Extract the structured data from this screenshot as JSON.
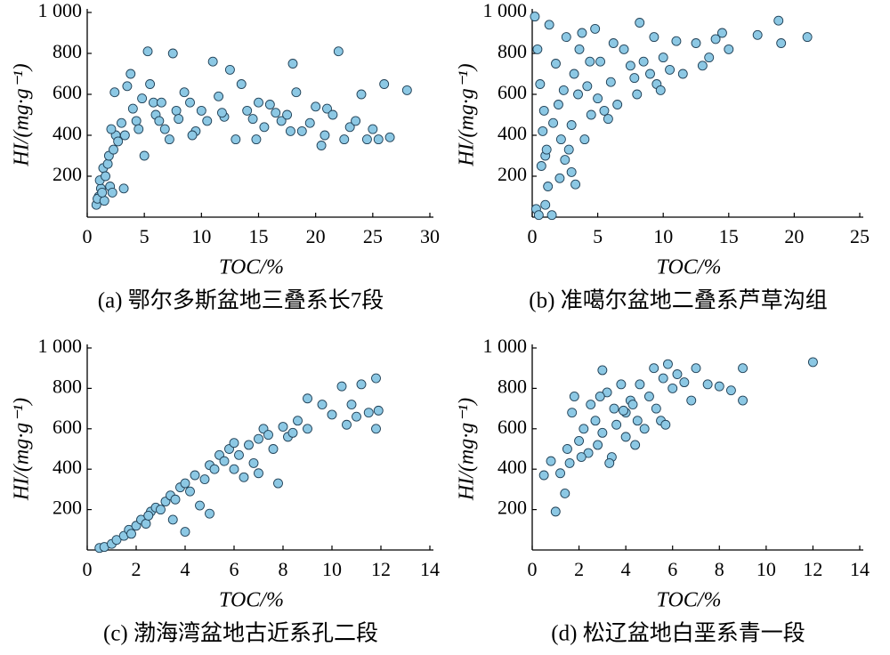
{
  "chart_data": [
    {
      "type": "scatter",
      "title": "(a) 鄂尔多斯盆地三叠系长7段",
      "xlabel": "TOC/%",
      "ylabel": "HI/(mg·g⁻¹)",
      "color": "#8cc8e4",
      "xlim": [
        0,
        30
      ],
      "xticks": [
        0,
        5,
        10,
        15,
        20,
        25,
        30
      ],
      "ylim": [
        0,
        1000
      ],
      "yticks": [
        200,
        400,
        600,
        800,
        {
          "value": 1000,
          "label": "1 000"
        }
      ],
      "x": [
        0.8,
        1,
        1.2,
        0.9,
        1.5,
        1.3,
        1.1,
        1.4,
        1.6,
        1.8,
        2,
        2.2,
        1.9,
        2.3,
        2.5,
        2.1,
        2.7,
        3,
        3.2,
        3.5,
        3.8,
        2.4,
        4,
        4.3,
        4.5,
        5,
        5.3,
        5.5,
        5.8,
        6,
        6.3,
        6.8,
        7.2,
        7.5,
        7.8,
        8,
        8.5,
        9,
        9.5,
        10,
        10.5,
        11,
        11.5,
        12,
        12.5,
        13,
        13.5,
        14,
        14.5,
        15,
        15.5,
        16,
        16.5,
        17,
        17.5,
        18,
        18.3,
        18.8,
        19.5,
        20,
        20.5,
        21,
        21.5,
        22,
        22.5,
        23,
        23.5,
        24,
        24.5,
        25,
        25.5,
        26,
        26.5,
        28,
        3.3,
        4.8,
        6.5,
        9.2,
        11.8,
        14.8,
        17.8,
        20.8
      ],
      "values": [
        60,
        100,
        140,
        90,
        80,
        120,
        180,
        240,
        200,
        260,
        150,
        120,
        300,
        330,
        400,
        430,
        370,
        460,
        140,
        640,
        700,
        610,
        530,
        470,
        430,
        300,
        810,
        650,
        560,
        500,
        470,
        430,
        380,
        800,
        520,
        480,
        610,
        560,
        420,
        520,
        470,
        760,
        590,
        490,
        720,
        380,
        650,
        520,
        480,
        560,
        440,
        550,
        510,
        470,
        500,
        750,
        610,
        420,
        460,
        540,
        350,
        530,
        500,
        810,
        380,
        440,
        470,
        600,
        380,
        430,
        380,
        650,
        390,
        620,
        400,
        580,
        560,
        400,
        510,
        380,
        420,
        400
      ]
    },
    {
      "type": "scatter",
      "title": "(b) 准噶尔盆地二叠系芦草沟组",
      "xlabel": "TOC/%",
      "ylabel": "HI/(mg·g⁻¹)",
      "color": "#8cc8e4",
      "xlim": [
        0,
        25
      ],
      "xticks": [
        0,
        5,
        10,
        15,
        20,
        25
      ],
      "ylim": [
        0,
        1000
      ],
      "yticks": [
        200,
        400,
        600,
        800,
        {
          "value": 1000,
          "label": "1 000"
        }
      ],
      "x": [
        0.2,
        0.3,
        0.5,
        0.8,
        1,
        1,
        1.2,
        1.5,
        0.6,
        0.4,
        1.3,
        1.8,
        2,
        2.2,
        2.5,
        2.6,
        3,
        3,
        3.2,
        3.5,
        3.8,
        4,
        4.2,
        4.5,
        4.8,
        5,
        5.2,
        5.5,
        6,
        6.2,
        6.5,
        7,
        7.5,
        8,
        8.2,
        8.5,
        9,
        9.3,
        9.5,
        10,
        10.5,
        11,
        11.5,
        12.5,
        13,
        13.5,
        14,
        14.5,
        15,
        17.2,
        18.8,
        19,
        21,
        1.6,
        2.8,
        3.3,
        2.1,
        1.1,
        0.9,
        5.8,
        4.4,
        3.6,
        7.8,
        9.8,
        0.7,
        2.4
      ],
      "values": [
        980,
        40,
        10,
        420,
        300,
        60,
        150,
        10,
        650,
        820,
        940,
        750,
        550,
        380,
        280,
        880,
        220,
        450,
        700,
        600,
        900,
        380,
        640,
        500,
        920,
        580,
        760,
        520,
        660,
        850,
        550,
        820,
        740,
        600,
        950,
        760,
        700,
        880,
        650,
        780,
        720,
        860,
        700,
        850,
        740,
        780,
        870,
        900,
        820,
        890,
        960,
        850,
        880,
        460,
        330,
        160,
        190,
        330,
        520,
        480,
        760,
        820,
        680,
        620,
        250,
        620
      ]
    },
    {
      "type": "scatter",
      "title": "(c) 渤海湾盆地古近系孔二段",
      "xlabel": "TOC/%",
      "ylabel": "HI/(mg·g⁻¹)",
      "color": "#8cc8e4",
      "xlim": [
        0,
        14
      ],
      "xticks": [
        0,
        2,
        4,
        6,
        8,
        10,
        12,
        14
      ],
      "ylim": [
        0,
        1000
      ],
      "yticks": [
        200,
        400,
        600,
        800,
        {
          "value": 1000,
          "label": "1 000"
        }
      ],
      "x": [
        0.5,
        0.7,
        1,
        1.2,
        1.5,
        1.7,
        2,
        2.2,
        2.4,
        2.6,
        2.8,
        3,
        3.2,
        3.4,
        3.6,
        3.8,
        4,
        4,
        4.2,
        4.4,
        4.6,
        4.8,
        5,
        5.2,
        5.4,
        5.6,
        5.8,
        6,
        6.2,
        6.4,
        6.6,
        6.8,
        7,
        7.2,
        7.4,
        7.6,
        7.8,
        8,
        8.2,
        8.4,
        8.6,
        9,
        9,
        9.6,
        10,
        10.4,
        10.6,
        10.8,
        11,
        11.2,
        11.5,
        11.8,
        11.9,
        11.8,
        3.5,
        5,
        6,
        7,
        1.8,
        2.5
      ],
      "values": [
        10,
        15,
        30,
        50,
        70,
        100,
        120,
        150,
        130,
        190,
        210,
        200,
        240,
        270,
        250,
        310,
        330,
        90,
        290,
        370,
        220,
        350,
        420,
        400,
        470,
        440,
        500,
        530,
        470,
        360,
        520,
        430,
        550,
        600,
        570,
        500,
        330,
        610,
        560,
        580,
        640,
        750,
        600,
        720,
        670,
        810,
        620,
        720,
        660,
        820,
        680,
        850,
        690,
        600,
        150,
        180,
        400,
        380,
        80,
        170
      ]
    },
    {
      "type": "scatter",
      "title": "(d) 松辽盆地白垩系青一段",
      "xlabel": "TOC/%",
      "ylabel": "HI/(mg·g⁻¹)",
      "color": "#8cc8e4",
      "xlim": [
        0,
        14
      ],
      "xticks": [
        0,
        2,
        4,
        6,
        8,
        10,
        12,
        14
      ],
      "ylim": [
        0,
        1000
      ],
      "yticks": [
        200,
        400,
        600,
        800,
        {
          "value": 1000,
          "label": "1 000"
        }
      ],
      "x": [
        0.5,
        0.8,
        1,
        1.2,
        1.4,
        1.5,
        1.7,
        1.8,
        2,
        2.2,
        2.4,
        2.5,
        2.7,
        2.8,
        3,
        3,
        3.2,
        3.4,
        3.5,
        3.6,
        3.8,
        4,
        4,
        4.2,
        4.4,
        4.5,
        4.6,
        4.8,
        5,
        5.2,
        5.3,
        5.5,
        5.6,
        5.8,
        6,
        6.2,
        6.5,
        7,
        7.5,
        8,
        8.5,
        9,
        9,
        12,
        1.6,
        2.1,
        3.3,
        4.3,
        5.7,
        2.9,
        3.9,
        6.8
      ],
      "values": [
        370,
        440,
        190,
        380,
        280,
        500,
        680,
        760,
        540,
        600,
        480,
        720,
        640,
        520,
        890,
        580,
        780,
        460,
        700,
        620,
        820,
        560,
        680,
        740,
        520,
        640,
        820,
        600,
        760,
        900,
        700,
        640,
        850,
        920,
        800,
        870,
        830,
        900,
        820,
        810,
        790,
        900,
        740,
        930,
        430,
        460,
        430,
        720,
        620,
        760,
        690,
        740
      ]
    }
  ]
}
